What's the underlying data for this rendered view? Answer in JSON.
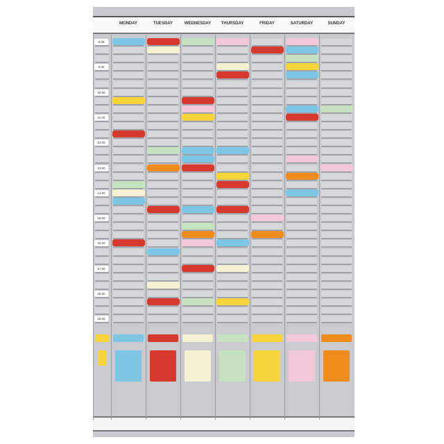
{
  "days": [
    "MONDAY",
    "TUESDAY",
    "WEDNESDAY",
    "THURSDAY",
    "FRIDAY",
    "SATURDAY",
    "SUNDAY"
  ],
  "times": [
    "8.00",
    "9.00",
    "10.00",
    "11.00",
    "12.00",
    "13.00",
    "14.00",
    "15.00",
    "16.00",
    "17.00",
    "18.00",
    "19.00"
  ],
  "colors": {
    "blue": "#7ec6e6",
    "red": "#d63a2f",
    "yellow": "#f7d53a",
    "green": "#c7e2c0",
    "cream": "#f5f1d2",
    "pink": "#f3c9d9",
    "orange": "#ef8c1c"
  },
  "cards": [
    [
      [
        0,
        "blue"
      ],
      [
        7,
        "yellow"
      ],
      [
        11,
        "red"
      ],
      [
        17,
        "green"
      ],
      [
        18,
        "cream"
      ],
      [
        19,
        "blue"
      ],
      [
        24,
        "red"
      ]
    ],
    [
      [
        0,
        "red"
      ],
      [
        1,
        "cream"
      ],
      [
        13,
        "green"
      ],
      [
        15,
        "orange"
      ],
      [
        20,
        "red"
      ],
      [
        25,
        "blue"
      ],
      [
        29,
        "cream"
      ],
      [
        31,
        "red"
      ]
    ],
    [
      [
        0,
        "green"
      ],
      [
        7,
        "red"
      ],
      [
        8,
        "pink"
      ],
      [
        9,
        "yellow"
      ],
      [
        13,
        "blue"
      ],
      [
        14,
        "blue"
      ],
      [
        15,
        "red"
      ],
      [
        20,
        "blue"
      ],
      [
        22,
        "green"
      ],
      [
        23,
        "orange"
      ],
      [
        24,
        "pink"
      ],
      [
        27,
        "red"
      ],
      [
        31,
        "green"
      ]
    ],
    [
      [
        0,
        "pink"
      ],
      [
        3,
        "cream"
      ],
      [
        4,
        "red"
      ],
      [
        13,
        "blue"
      ],
      [
        16,
        "yellow"
      ],
      [
        17,
        "red"
      ],
      [
        20,
        "red"
      ],
      [
        24,
        "blue"
      ],
      [
        27,
        "cream"
      ],
      [
        31,
        "yellow"
      ]
    ],
    [
      [
        1,
        "red"
      ],
      [
        21,
        "pink"
      ],
      [
        23,
        "orange"
      ]
    ],
    [
      [
        0,
        "pink"
      ],
      [
        1,
        "blue"
      ],
      [
        2,
        "green"
      ],
      [
        3,
        "yellow"
      ],
      [
        4,
        "blue"
      ],
      [
        8,
        "blue"
      ],
      [
        9,
        "red"
      ],
      [
        14,
        "pink"
      ],
      [
        16,
        "orange"
      ],
      [
        18,
        "blue"
      ]
    ],
    [
      [
        8,
        "green"
      ],
      [
        15,
        "pink"
      ]
    ]
  ],
  "stock_cards": [
    "yellow",
    "blue",
    "red",
    "cream",
    "green",
    "yellow",
    "pink",
    "orange"
  ]
}
